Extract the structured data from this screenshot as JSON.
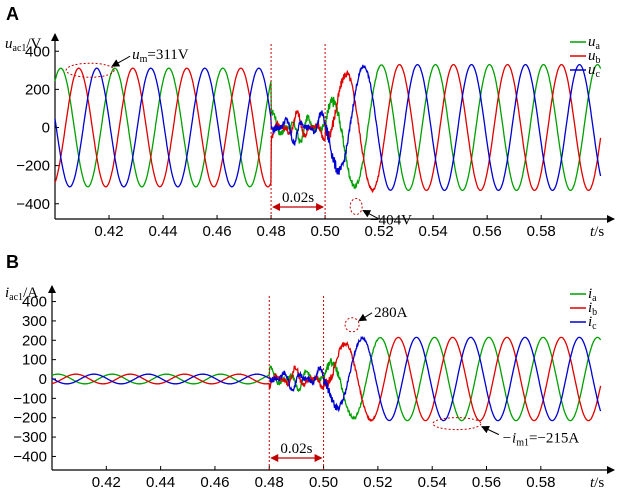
{
  "chart_data": [
    {
      "type": "line",
      "panel_label": "A",
      "ylabel_main": "u",
      "ylabel_sub": "ac1",
      "ylabel_unit": "/V",
      "xlabel_main": "t",
      "xlabel_unit": "/s",
      "xlim": [
        0.4,
        0.604
      ],
      "ylim": [
        -480,
        480
      ],
      "xticks": [
        0.42,
        0.44,
        0.46,
        0.48,
        0.5,
        0.52,
        0.54,
        0.56,
        0.58
      ],
      "xtick_labels": [
        "0.42",
        "0.44",
        "0.46",
        "0.48",
        "0.50",
        "0.52",
        "0.54",
        "0.56",
        "0.58"
      ],
      "yticks": [
        400,
        200,
        0,
        -200,
        -400
      ],
      "ytick_labels": [
        "400",
        "200",
        "0",
        "−200",
        "−400"
      ],
      "series": [
        {
          "name_main": "u",
          "name_sub": "a",
          "color": "#00a000",
          "amplitude_pre": 311,
          "amplitude_fault": 80,
          "amplitude_post": 330
        },
        {
          "name_main": "u",
          "name_sub": "b",
          "color": "#e00000",
          "amplitude_pre": 311,
          "amplitude_fault": 80,
          "amplitude_post": 330
        },
        {
          "name_main": "u",
          "name_sub": "c",
          "color": "#0000d0",
          "amplitude_pre": 311,
          "amplitude_fault": 80,
          "amplitude_post": 330
        }
      ],
      "frequency_hz": 50,
      "fault_interval": [
        0.48,
        0.5
      ],
      "interval_label": "0.02s",
      "annotations": [
        {
          "text_main": "u",
          "text_sub": "m",
          "text_rest": "=311V",
          "x": 0.413,
          "y": 311
        },
        {
          "text_main": "",
          "text_sub": "",
          "text_rest": "−404V",
          "x": 0.5115,
          "y": -404
        }
      ]
    },
    {
      "type": "line",
      "panel_label": "B",
      "ylabel_main": "i",
      "ylabel_sub": "ac1",
      "ylabel_unit": "/A",
      "xlabel_main": "t",
      "xlabel_unit": "/s",
      "xlim": [
        0.4,
        0.604
      ],
      "ylim": [
        -470,
        470
      ],
      "xticks": [
        0.42,
        0.44,
        0.46,
        0.48,
        0.5,
        0.52,
        0.54,
        0.56,
        0.58
      ],
      "xtick_labels": [
        "0.42",
        "0.44",
        "0.46",
        "0.48",
        "0.50",
        "0.52",
        "0.54",
        "0.56",
        "0.58"
      ],
      "yticks": [
        400,
        300,
        200,
        100,
        0,
        -100,
        -200,
        -300,
        -400
      ],
      "ytick_labels": [
        "400",
        "300",
        "200",
        "100",
        "0",
        "−100",
        "−200",
        "−300",
        "−400"
      ],
      "series": [
        {
          "name_main": "i",
          "name_sub": "a",
          "color": "#00a000",
          "amplitude_pre": 25,
          "amplitude_fault": 60,
          "amplitude_post": 215
        },
        {
          "name_main": "i",
          "name_sub": "b",
          "color": "#e00000",
          "amplitude_pre": 25,
          "amplitude_fault": 60,
          "amplitude_post": 215
        },
        {
          "name_main": "i",
          "name_sub": "c",
          "color": "#0000d0",
          "amplitude_pre": 25,
          "amplitude_fault": 60,
          "amplitude_post": 215
        }
      ],
      "frequency_hz": 50,
      "fault_interval": [
        0.48,
        0.5
      ],
      "interval_label": "0.02s",
      "annotations": [
        {
          "text_main": "",
          "text_sub": "",
          "text_rest": "280A",
          "x": 0.5105,
          "y": 280
        },
        {
          "text_main": "−i",
          "text_sub": "m1",
          "text_rest": "=−215A",
          "x": 0.548,
          "y": -215
        }
      ]
    }
  ]
}
